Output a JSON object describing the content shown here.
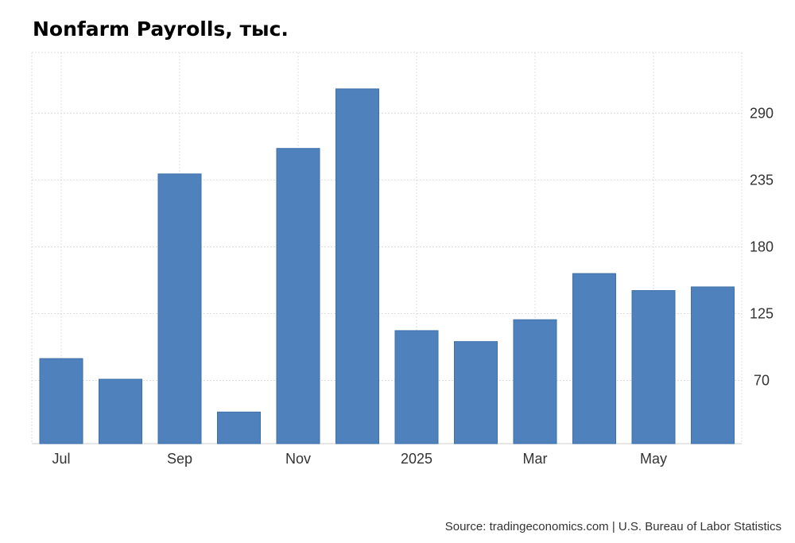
{
  "chart_data": {
    "type": "bar",
    "title": "Nonfarm Payrolls, тыс.",
    "x": [
      "2024-07",
      "2024-08",
      "2024-09",
      "2024-10",
      "2024-11",
      "2024-12",
      "2025-01",
      "2025-02",
      "2025-03",
      "2025-04",
      "2025-05",
      "2025-06"
    ],
    "x_tick_labels": [
      {
        "x": "2024-07",
        "label": "Jul"
      },
      {
        "x": "2024-09",
        "label": "Sep"
      },
      {
        "x": "2024-11",
        "label": "Nov"
      },
      {
        "x": "2025-01",
        "label": "2025"
      },
      {
        "x": "2025-03",
        "label": "Mar"
      },
      {
        "x": "2025-05",
        "label": "May"
      }
    ],
    "values": [
      88,
      71,
      240,
      44,
      261,
      310,
      111,
      102,
      120,
      158,
      144,
      147
    ],
    "y_ticks": [
      70,
      125,
      180,
      235,
      290
    ],
    "ylim": [
      18,
      340
    ],
    "y_axis_side": "right",
    "grid": true,
    "bar_color": "#4f81bd",
    "grid_color": "#dddddd",
    "source": "Source: tradingeconomics.com | U.S. Bureau of Labor Statistics"
  }
}
